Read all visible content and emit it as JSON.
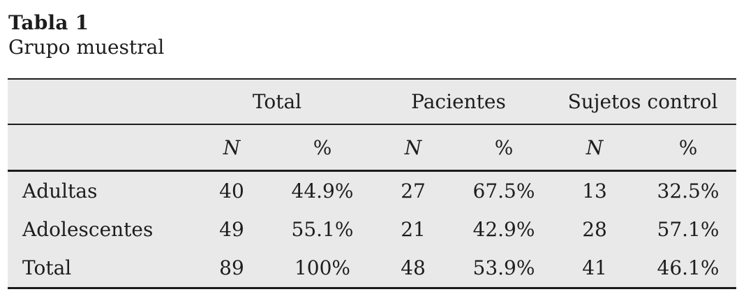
{
  "caption": {
    "title": "Tabla 1",
    "subtitle": "Grupo muestral"
  },
  "table": {
    "group_headers": {
      "total": "Total",
      "patients": "Pacientes",
      "controls": "Sujetos control"
    },
    "sub_headers": {
      "n": "N",
      "pct": "%"
    },
    "rows": [
      {
        "label": "Adultas",
        "values": [
          "40",
          "44.9%",
          "27",
          "67.5%",
          "13",
          "32.5%"
        ]
      },
      {
        "label": "Adolescentes",
        "values": [
          "49",
          "55.1%",
          "21",
          "42.9%",
          "28",
          "57.1%"
        ]
      },
      {
        "label": "Total",
        "values": [
          "89",
          "100%",
          "48",
          "53.9%",
          "41",
          "46.1%"
        ]
      }
    ]
  },
  "chart_data": {
    "type": "table",
    "title": "Tabla 1 — Grupo muestral",
    "column_groups": [
      "Total",
      "Pacientes",
      "Sujetos control"
    ],
    "columns": [
      "",
      "Total N",
      "Total %",
      "Pacientes N",
      "Pacientes %",
      "Sujetos control N",
      "Sujetos control %"
    ],
    "rows": [
      [
        "Adultas",
        40,
        "44.9%",
        27,
        "67.5%",
        13,
        "32.5%"
      ],
      [
        "Adolescentes",
        49,
        "55.1%",
        21,
        "42.9%",
        28,
        "57.1%"
      ],
      [
        "Total",
        89,
        "100%",
        48,
        "53.9%",
        41,
        "46.1%"
      ]
    ]
  },
  "colors": {
    "table_background": "#e9e9ea",
    "rule_color": "#1c1c1c",
    "text_color": "#1d1d1d",
    "page_background": "#ffffff"
  }
}
